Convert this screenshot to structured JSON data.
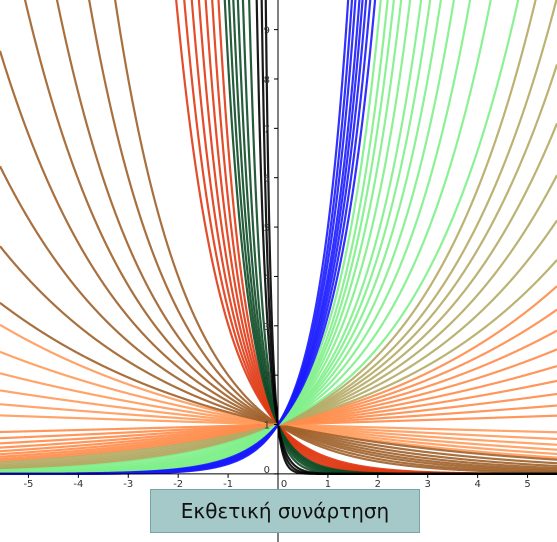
{
  "chart_data": {
    "type": "exponential",
    "title": "Εκθετική συνάρτηση",
    "xlim": [
      -5.57,
      5.59
    ],
    "ylim": [
      -1.38,
      9.6
    ],
    "xticks": [
      -5,
      -4,
      -3,
      -2,
      -1,
      0,
      1,
      2,
      3,
      4,
      5
    ],
    "yticks": [
      0,
      1,
      2,
      3,
      4,
      5,
      6,
      7,
      8,
      9
    ],
    "series": [
      {
        "color": "#ff9a5a",
        "bases": [
          0.82,
          0.85,
          0.88,
          0.91,
          0.94,
          0.97
        ]
      },
      {
        "color": "#a0602a",
        "bases": [
          0.5,
          0.55,
          0.6,
          0.64,
          0.68,
          0.72,
          0.76,
          0.8
        ]
      },
      {
        "color": "#e03a14",
        "bases": [
          0.15,
          0.18,
          0.21,
          0.24,
          0.27,
          0.3,
          0.33
        ]
      },
      {
        "color": "#0d4a25",
        "bases": [
          0.02,
          0.04,
          0.06,
          0.08,
          0.1,
          0.12
        ]
      },
      {
        "color": "#000000",
        "bases": [
          0.0001,
          0.001,
          0.005
        ]
      },
      {
        "color": "#ff8c4a",
        "bases": [
          1.03,
          1.06,
          1.09,
          1.12,
          1.15,
          1.18,
          1.21,
          1.24,
          1.27
        ]
      },
      {
        "color": "#b4aa64",
        "bases": [
          1.3,
          1.34,
          1.38,
          1.42,
          1.46,
          1.5,
          1.55
        ]
      },
      {
        "color": "#7ff08a",
        "bases": [
          1.6,
          1.7,
          1.8,
          1.9,
          2,
          2.1,
          2.2,
          2.35,
          2.5,
          2.65,
          2.8,
          3
        ]
      },
      {
        "color": "#1a1aff",
        "bases": [
          3.2,
          3.4,
          3.6,
          3.8,
          4,
          4.3,
          4.6,
          5
        ]
      }
    ]
  }
}
